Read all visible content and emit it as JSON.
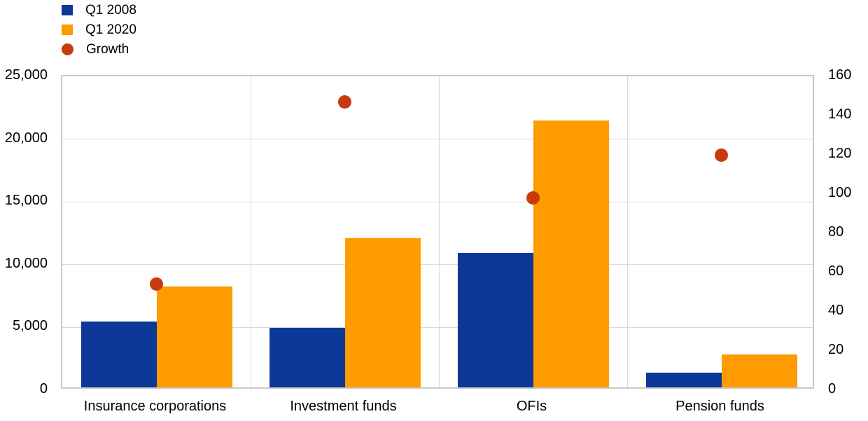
{
  "legend": {
    "items": [
      {
        "label": "Q1 2008",
        "color": "#0d3898",
        "shape": "square"
      },
      {
        "label": "Q1 2020",
        "color": "#fe9b00",
        "shape": "square"
      },
      {
        "label": "Growth",
        "color": "#c73b0f",
        "shape": "circle"
      }
    ]
  },
  "chart_data": {
    "type": "bar",
    "subtype": "grouped bars with scatter overlay, dual y-axes",
    "categories": [
      "Insurance corporations",
      "Investment funds",
      "OFIs",
      "Pension funds"
    ],
    "series": [
      {
        "name": "Q1 2008",
        "type": "bar",
        "axis": "left",
        "color": "#0d3898",
        "values": [
          5250,
          4750,
          10700,
          1150
        ]
      },
      {
        "name": "Q1 2020",
        "type": "bar",
        "axis": "left",
        "color": "#fe9b00",
        "values": [
          8050,
          11900,
          21250,
          2600
        ]
      },
      {
        "name": "Growth",
        "type": "scatter",
        "axis": "right",
        "color": "#c73b0f",
        "values": [
          54,
          147,
          98,
          120
        ]
      }
    ],
    "left_axis": {
      "min": 0,
      "max": 25000,
      "step": 5000,
      "tick_labels": [
        "0",
        "5,000",
        "10,000",
        "15,000",
        "20,000",
        "25,000"
      ]
    },
    "right_axis": {
      "min": 0,
      "max": 160,
      "step": 20,
      "tick_labels": [
        "0",
        "20",
        "40",
        "60",
        "80",
        "100",
        "120",
        "140",
        "160"
      ]
    },
    "title": "",
    "xlabel": "",
    "ylabel": "",
    "grid": true,
    "legend_position": "top-left",
    "colors": {
      "plot_border": "#c9c9c9",
      "gridline": "#d9d9d9",
      "text": "#000000"
    }
  }
}
